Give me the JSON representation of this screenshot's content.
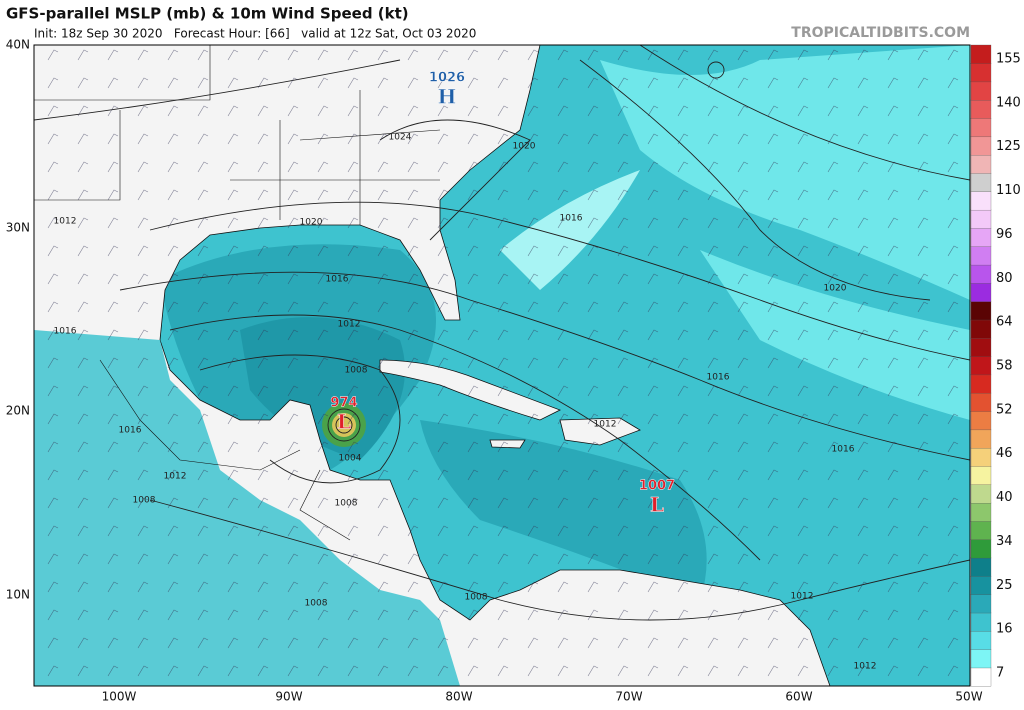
{
  "header": {
    "title": "GFS-parallel MSLP (mb) & 10m Wind Speed (kt)",
    "subtitle": "Init: 18z Sep 30 2020   Forecast Hour: [66]   valid at 12z Sat, Oct 03 2020",
    "watermark": "TROPICALTIDBITS.COM"
  },
  "lat_labels": [
    "40N",
    "30N",
    "20N",
    "10N"
  ],
  "lon_labels": [
    "100W",
    "90W",
    "80W",
    "70W",
    "60W",
    "50W"
  ],
  "colorbar": {
    "labels": [
      "155",
      "140",
      "125",
      "110",
      "96",
      "80",
      "64",
      "58",
      "52",
      "46",
      "40",
      "34",
      "25",
      "16",
      "7"
    ]
  },
  "centers": [
    {
      "pressure": "1026",
      "letter": "H"
    },
    {
      "pressure": "974",
      "letter": "L"
    },
    {
      "pressure": "1007",
      "letter": "L"
    }
  ],
  "isobar_labels": [
    "1024",
    "1020",
    "1020",
    "1016",
    "1012",
    "1016",
    "1016",
    "1012",
    "1020",
    "1008",
    "1016",
    "1016",
    "1012",
    "1004",
    "1016",
    "1012",
    "1008",
    "1008",
    "1008",
    "1008",
    "1012",
    "1012"
  ]
}
